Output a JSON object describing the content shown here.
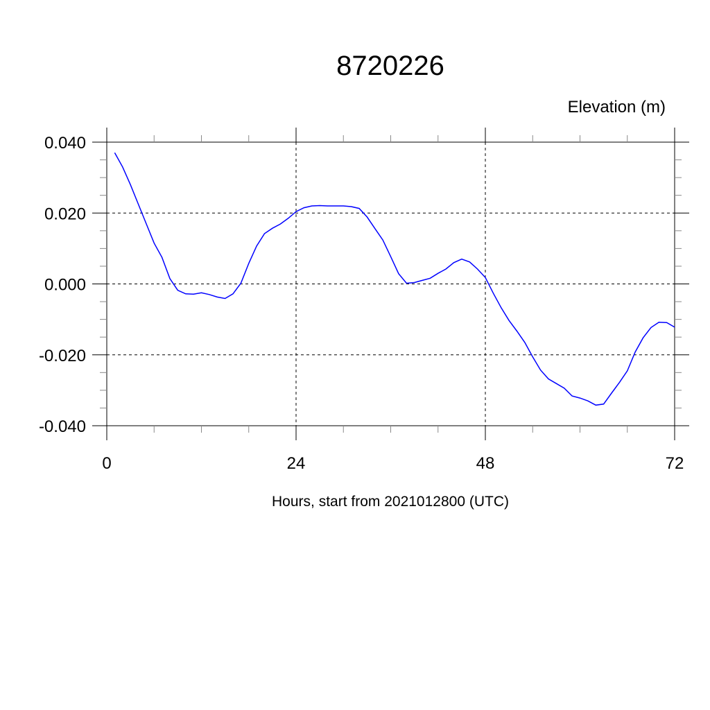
{
  "chart_data": {
    "type": "line",
    "title": "8720226",
    "ylabel": "Elevation (m)",
    "xlabel": "Hours, start from 2021012800 (UTC)",
    "xlim": [
      0,
      72
    ],
    "ylim": [
      -0.04,
      0.04
    ],
    "x_ticks": [
      0,
      24,
      48,
      72
    ],
    "x_tick_labels": [
      "0",
      "24",
      "48",
      "72"
    ],
    "y_ticks": [
      0.04,
      0.02,
      0.0,
      -0.02,
      -0.04
    ],
    "y_tick_labels": [
      "0.040",
      "0.020",
      "0.000",
      "-0.020",
      "-0.040"
    ],
    "grid": true,
    "line_color": "#0000ff",
    "x": [
      1,
      2,
      3,
      4,
      5,
      6,
      7,
      8,
      9,
      10,
      11,
      12,
      13,
      14,
      15,
      16,
      17,
      18,
      19,
      20,
      21,
      22,
      23,
      24,
      25,
      26,
      27,
      28,
      29,
      30,
      31,
      32,
      33,
      34,
      35,
      36,
      37,
      38,
      39,
      40,
      41,
      42,
      43,
      44,
      45,
      46,
      47,
      48,
      49,
      50,
      51,
      52,
      53,
      54,
      55,
      56,
      57,
      58,
      59,
      60,
      61,
      62,
      63,
      64,
      65,
      66,
      67,
      68,
      69,
      70,
      71,
      72
    ],
    "values": [
      0.037,
      0.033,
      0.028,
      0.0225,
      0.017,
      0.0115,
      0.0075,
      0.0015,
      -0.0018,
      -0.0028,
      -0.0029,
      -0.0025,
      -0.003,
      -0.0037,
      -0.0041,
      -0.0028,
      0.0002,
      0.0058,
      0.0107,
      0.0142,
      0.0157,
      0.0169,
      0.0185,
      0.0204,
      0.0215,
      0.022,
      0.0221,
      0.022,
      0.022,
      0.022,
      0.0218,
      0.0213,
      0.0189,
      0.0156,
      0.0124,
      0.0077,
      0.0029,
      0.0002,
      0.0004,
      0.001,
      0.0016,
      0.003,
      0.0042,
      0.006,
      0.007,
      0.0062,
      0.0042,
      0.0018,
      -0.0026,
      -0.0067,
      -0.0103,
      -0.0133,
      -0.0165,
      -0.0206,
      -0.0243,
      -0.0268,
      -0.0281,
      -0.0294,
      -0.0316,
      -0.0322,
      -0.033,
      -0.0342,
      -0.0339,
      -0.0308,
      -0.0278,
      -0.0245,
      -0.0192,
      -0.0152,
      -0.0123,
      -0.0108,
      -0.0109,
      -0.0122
    ]
  }
}
